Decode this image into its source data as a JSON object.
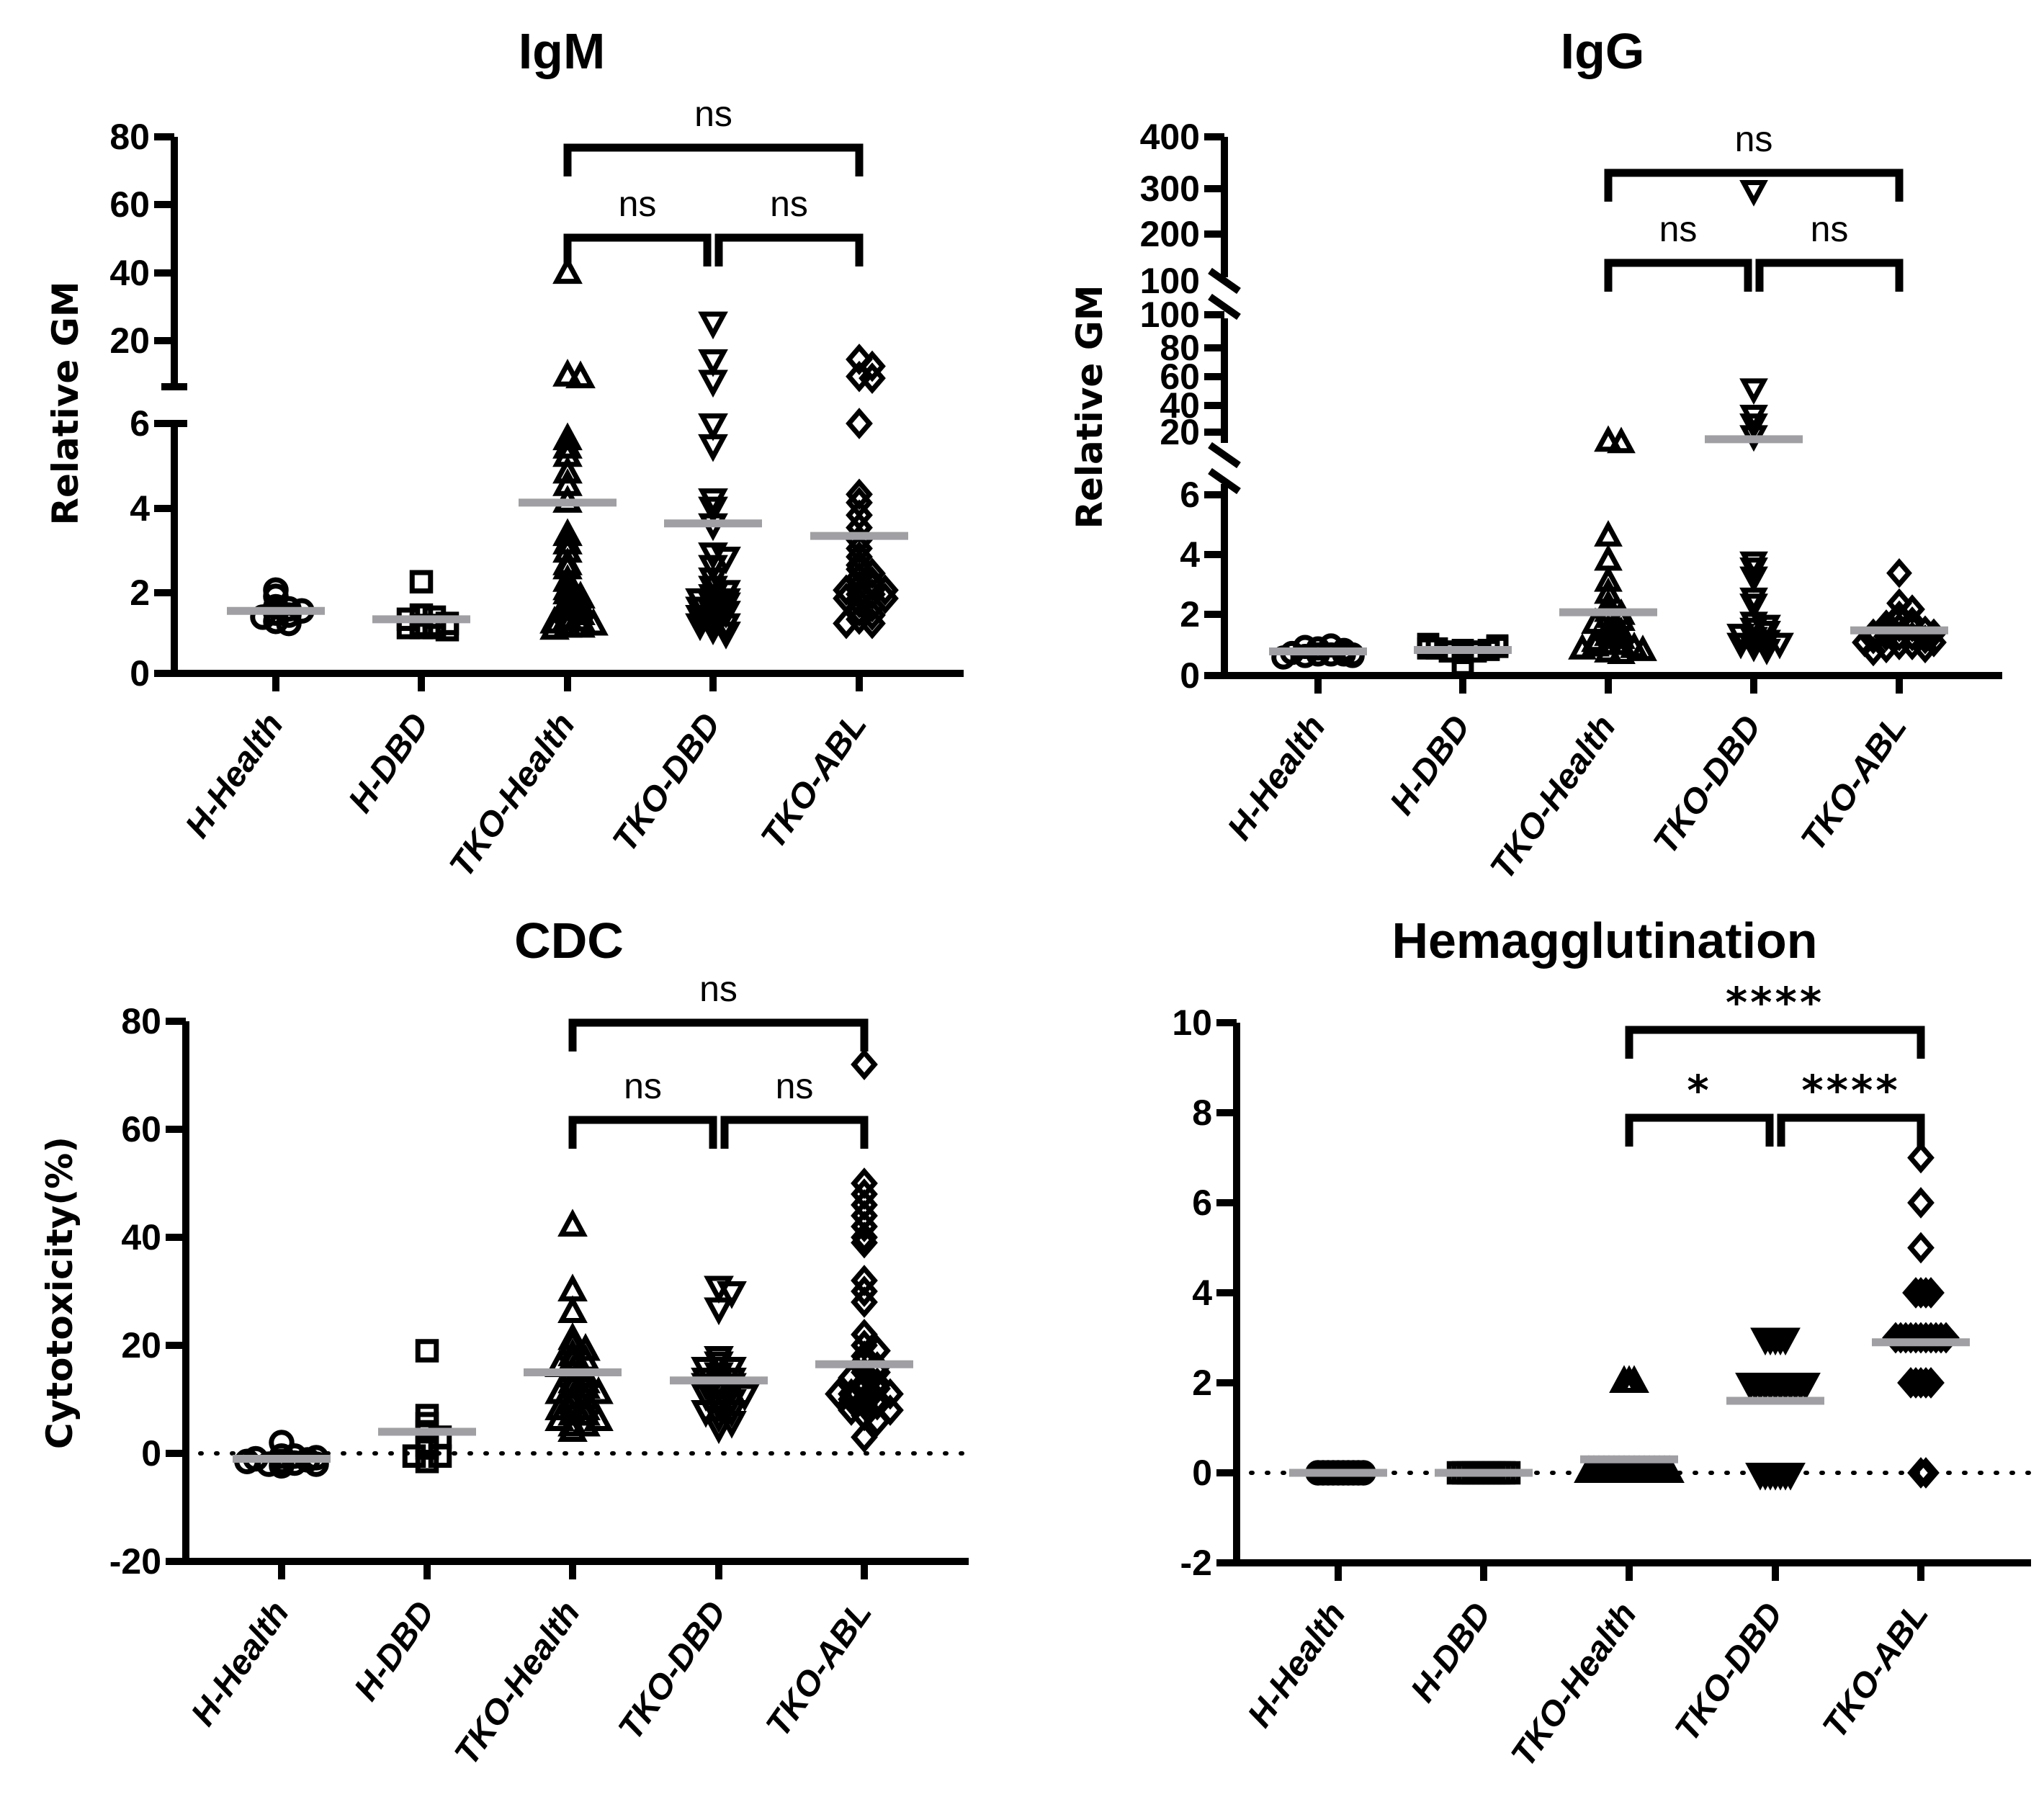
{
  "figure": {
    "categories": [
      "H-Health",
      "H-DBD",
      "TKO-Health",
      "TKO-DBD",
      "TKO-ABL"
    ],
    "marker_shapes": [
      "circle",
      "square",
      "triangle-up",
      "triangle-down",
      "diamond"
    ],
    "colors": {
      "marker": "#000000",
      "mean_line": "#a0a0a4",
      "axis": "#000000"
    }
  },
  "chart_data": [
    {
      "id": "igm",
      "type": "scatter",
      "title": "IgM",
      "xlabel": "",
      "ylabel": "Relative GM",
      "categories": [
        "H-Health",
        "H-DBD",
        "TKO-Health",
        "TKO-DBD",
        "TKO-ABL"
      ],
      "y_axis_segments": [
        {
          "range": [
            0,
            6
          ],
          "ticks": [
            "0",
            "2",
            "4",
            "6"
          ]
        },
        {
          "range": [
            7,
            80
          ],
          "ticks": [
            "20",
            "40",
            "60",
            "80"
          ]
        }
      ],
      "axis_break": "between 6 and ~7",
      "zero_reference_line": false,
      "series": [
        {
          "name": "H-Health",
          "marker": "circle",
          "mean": 1.5,
          "values": [
            1.45,
            1.4,
            1.35,
            1.5,
            2.0,
            1.85,
            1.6,
            1.55,
            1.25,
            1.2
          ]
        },
        {
          "name": "H-DBD",
          "marker": "square",
          "mean": 1.3,
          "values": [
            1.15,
            1.1,
            1.1,
            1.15,
            1.3,
            1.4,
            1.35,
            1.2,
            1.1,
            1.05,
            2.2
          ]
        },
        {
          "name": "TKO-Health",
          "marker": "triangle-up",
          "mean": 4.1,
          "values": [
            40,
            10,
            9.5,
            5.6,
            5.4,
            5.2,
            4.8,
            4.5,
            4.1,
            3.3,
            3.1,
            2.9,
            2.6,
            2.5,
            2.2,
            2.0,
            1.9,
            1.8,
            1.7,
            1.6,
            1.5,
            1.4,
            1.3,
            1.25,
            1.2,
            1.15,
            1.1,
            1.1,
            1.05
          ]
        },
        {
          "name": "TKO-DBD",
          "marker": "triangle-down",
          "mean": 3.6,
          "values": [
            26,
            15,
            9,
            6.0,
            5.5,
            4.2,
            4.0,
            3.6,
            2.9,
            2.8,
            2.6,
            2.3,
            2.1,
            2.0,
            1.9,
            1.8,
            1.8,
            1.7,
            1.7,
            1.6,
            1.5,
            1.5,
            1.4,
            1.3,
            1.2,
            1.2,
            1.1,
            1.0
          ]
        },
        {
          "name": "TKO-ABL",
          "marker": "diamond",
          "mean": 3.3,
          "values": [
            15,
            13,
            10,
            9.5,
            6.0,
            4.3,
            4.1,
            3.8,
            3.5,
            3.2,
            3.0,
            2.8,
            2.6,
            2.5,
            2.4,
            2.3,
            2.2,
            2.1,
            2.1,
            2.0,
            2.0,
            1.9,
            1.9,
            1.8,
            1.8,
            1.7,
            1.6,
            1.5,
            1.4,
            1.3,
            1.2,
            1.2
          ]
        }
      ],
      "comparisons": [
        {
          "from": "TKO-Health",
          "to": "TKO-ABL",
          "label": "ns",
          "level": 2
        },
        {
          "from": "TKO-Health",
          "to": "TKO-DBD",
          "label": "ns",
          "level": 1
        },
        {
          "from": "TKO-DBD",
          "to": "TKO-ABL",
          "label": "ns",
          "level": 1
        }
      ]
    },
    {
      "id": "igg",
      "type": "scatter",
      "title": "IgG",
      "xlabel": "",
      "ylabel": "Relative GM",
      "categories": [
        "H-Health",
        "H-DBD",
        "TKO-Health",
        "TKO-DBD",
        "TKO-ABL"
      ],
      "y_axis_segments": [
        {
          "range": [
            0,
            6
          ],
          "ticks": [
            "0",
            "2",
            "4",
            "6"
          ]
        },
        {
          "range": [
            10,
            100
          ],
          "ticks": [
            "20",
            "40",
            "60",
            "80",
            "100"
          ]
        },
        {
          "range": [
            100,
            400
          ],
          "ticks": [
            "100",
            "200",
            "300",
            "400"
          ]
        }
      ],
      "axis_break": "two breaks: 6–10 and 100–100",
      "zero_reference_line": false,
      "series": [
        {
          "name": "H-Health",
          "marker": "circle",
          "mean": 0.8,
          "values": [
            0.7,
            0.7,
            0.65,
            0.7,
            0.75,
            0.9,
            1.0,
            0.95,
            0.85,
            0.7,
            0.6,
            0.65
          ]
        },
        {
          "name": "H-DBD",
          "marker": "square",
          "mean": 0.85,
          "values": [
            0.85,
            0.8,
            0.8,
            0.85,
            0.9,
            1.0,
            1.05,
            0.95,
            0.9,
            0.75,
            0.35
          ]
        },
        {
          "name": "TKO-Health",
          "marker": "triangle-up",
          "mean": 2.1,
          "values": [
            13,
            12,
            4.6,
            3.8,
            3.1,
            2.7,
            2.3,
            2.1,
            2.0,
            1.9,
            1.8,
            1.7,
            1.5,
            1.4,
            1.3,
            1.2,
            1.1,
            1.0,
            1.0,
            0.95,
            0.9,
            0.85,
            0.8,
            0.75,
            0.7
          ]
        },
        {
          "name": "TKO-DBD",
          "marker": "triangle-down",
          "mean": 15,
          "values": [
            290,
            50,
            32,
            26,
            18,
            3.8,
            3.6,
            3.3,
            2.6,
            2.4,
            1.8,
            1.7,
            1.6,
            1.5,
            1.4,
            1.3,
            1.2,
            1.1,
            1.1,
            1.0,
            0.9
          ]
        },
        {
          "name": "TKO-ABL",
          "marker": "diamond",
          "mean": 1.5,
          "values": [
            3.4,
            2.4,
            2.2,
            2.0,
            1.9,
            1.8,
            1.7,
            1.6,
            1.6,
            1.5,
            1.5,
            1.4,
            1.4,
            1.3,
            1.3,
            1.3,
            1.2,
            1.2,
            1.1,
            1.1,
            1.0,
            1.0,
            0.9,
            0.9,
            0.8
          ]
        }
      ],
      "comparisons": [
        {
          "from": "TKO-Health",
          "to": "TKO-ABL",
          "label": "ns",
          "level": 2
        },
        {
          "from": "TKO-Health",
          "to": "TKO-DBD",
          "label": "ns",
          "level": 1
        },
        {
          "from": "TKO-DBD",
          "to": "TKO-ABL",
          "label": "ns",
          "level": 1
        }
      ]
    },
    {
      "id": "cdc",
      "type": "scatter",
      "title": "CDC",
      "xlabel": "",
      "ylabel": "Cytotoxicity(%)",
      "categories": [
        "H-Health",
        "H-DBD",
        "TKO-Health",
        "TKO-DBD",
        "TKO-ABL"
      ],
      "ylim": [
        -20,
        80
      ],
      "yticks": [
        "-20",
        "0",
        "20",
        "40",
        "60",
        "80"
      ],
      "zero_reference_line": true,
      "series": [
        {
          "name": "H-Health",
          "marker": "circle",
          "mean": -1,
          "values": [
            -1.5,
            -1.8,
            -2.0,
            -1.2,
            -1.0,
            2.0,
            -0.5,
            -0.8,
            -1.5,
            -2.0,
            -0.5,
            -2.3
          ]
        },
        {
          "name": "H-DBD",
          "marker": "square",
          "mean": 4,
          "values": [
            19,
            7,
            5.5,
            4,
            3,
            1.5,
            1,
            -0.5,
            -0.5,
            -1.5
          ]
        },
        {
          "name": "TKO-Health",
          "marker": "triangle-up",
          "mean": 15,
          "values": [
            42,
            30,
            26,
            21,
            20,
            19,
            18,
            17,
            17,
            16,
            15,
            14,
            13,
            13,
            12,
            12,
            11,
            11,
            10,
            10,
            9,
            8,
            8,
            7,
            7,
            6,
            6,
            5,
            5,
            4
          ]
        },
        {
          "name": "TKO-DBD",
          "marker": "triangle-down",
          "mean": 13.5,
          "values": [
            31,
            30,
            27,
            18,
            17,
            16,
            16,
            15,
            14,
            14,
            13,
            13,
            13,
            12,
            12,
            11,
            11,
            10,
            10,
            9,
            8,
            8,
            7,
            6,
            5
          ]
        },
        {
          "name": "TKO-ABL",
          "marker": "diamond",
          "mean": 16.5,
          "values": [
            72,
            50,
            48,
            46,
            44,
            42,
            40,
            39,
            32,
            30,
            28,
            22,
            20,
            19,
            18,
            17,
            16,
            15,
            15,
            14,
            13,
            13,
            12,
            12,
            11,
            11,
            11,
            10,
            10,
            10,
            9,
            9,
            8,
            8,
            7,
            6,
            3
          ]
        }
      ],
      "comparisons": [
        {
          "from": "TKO-Health",
          "to": "TKO-ABL",
          "label": "ns",
          "level": 2
        },
        {
          "from": "TKO-Health",
          "to": "TKO-DBD",
          "label": "ns",
          "level": 1
        },
        {
          "from": "TKO-DBD",
          "to": "TKO-ABL",
          "label": "ns",
          "level": 1
        }
      ]
    },
    {
      "id": "hemag",
      "type": "scatter",
      "title": "Hemagglutination",
      "xlabel": "",
      "ylabel": "",
      "categories": [
        "H-Health",
        "H-DBD",
        "TKO-Health",
        "TKO-DBD",
        "TKO-ABL"
      ],
      "ylim": [
        -2,
        10
      ],
      "yticks": [
        "-2",
        "0",
        "2",
        "4",
        "6",
        "8",
        "10"
      ],
      "zero_reference_line": true,
      "series": [
        {
          "name": "H-Health",
          "marker": "circle",
          "mean": 0,
          "values": [
            0,
            0,
            0,
            0,
            0,
            0,
            0,
            0,
            0,
            0
          ]
        },
        {
          "name": "H-DBD",
          "marker": "square",
          "mean": 0,
          "values": [
            0,
            0,
            0,
            0,
            0,
            0,
            0,
            0,
            0,
            0,
            0
          ]
        },
        {
          "name": "TKO-Health",
          "marker": "triangle-up",
          "mean": 0.3,
          "values": [
            2,
            2,
            2,
            0,
            0,
            0,
            0,
            0,
            0,
            0,
            0,
            0,
            0,
            0,
            0,
            0,
            0,
            0,
            0,
            0
          ]
        },
        {
          "name": "TKO-DBD",
          "marker": "triangle-down",
          "mean": 1.6,
          "values": [
            3,
            3,
            3,
            3,
            3,
            2,
            2,
            2,
            2,
            2,
            2,
            2,
            2,
            2,
            2,
            2,
            2,
            0,
            0,
            0,
            0,
            0,
            0,
            0
          ]
        },
        {
          "name": "TKO-ABL",
          "marker": "diamond",
          "mean": 2.9,
          "values": [
            7,
            6,
            5,
            4,
            4,
            4,
            4,
            3,
            3,
            3,
            3,
            3,
            3,
            3,
            3,
            3,
            3,
            3,
            2,
            2,
            2,
            2,
            2,
            0,
            0
          ]
        }
      ],
      "comparisons": [
        {
          "from": "TKO-Health",
          "to": "TKO-ABL",
          "label": "****",
          "level": 2
        },
        {
          "from": "TKO-Health",
          "to": "TKO-DBD",
          "label": "*",
          "level": 1
        },
        {
          "from": "TKO-DBD",
          "to": "TKO-ABL",
          "label": "****",
          "level": 1
        }
      ]
    }
  ]
}
